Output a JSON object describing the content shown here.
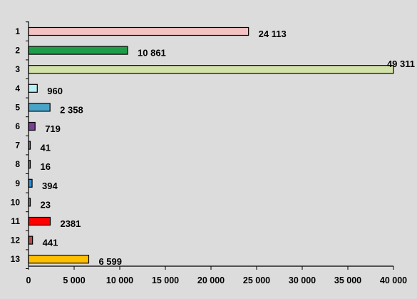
{
  "chart_data": {
    "type": "bar",
    "orientation": "horizontal",
    "categories": [
      "1",
      "2",
      "3",
      "4",
      "5",
      "6",
      "7",
      "8",
      "9",
      "10",
      "11",
      "12",
      "13"
    ],
    "values": [
      24113,
      10861,
      49311,
      960,
      2358,
      719,
      41,
      16,
      394,
      23,
      2381,
      441,
      6599
    ],
    "value_labels": [
      "24 113",
      "10 861",
      "49 311",
      "960",
      "2 358",
      "719",
      "41",
      "16",
      "394",
      "23",
      "2381",
      "441",
      "6 599"
    ],
    "colors": [
      "#f4c2c2",
      "#1f9e4a",
      "#d3e2a8",
      "#b8f0f4",
      "#4aa3c8",
      "#7a3f96",
      "#7a7a7a",
      "#7a7a7a",
      "#2f8fd8",
      "#7a7a7a",
      "#ff0000",
      "#b14c4c",
      "#ffc000"
    ],
    "xlim": [
      0,
      40000
    ],
    "x_ticks": [
      0,
      5000,
      10000,
      15000,
      20000,
      25000,
      30000,
      35000,
      40000
    ],
    "x_tick_labels": [
      "0",
      "5 000",
      "10 000",
      "15 000",
      "20 000",
      "25 000",
      "30 000",
      "35 000",
      "40 000"
    ],
    "grid": false,
    "legend": "none",
    "title": "",
    "xlabel": "",
    "ylabel": ""
  },
  "style": {
    "background": "#dcdcdc",
    "plot_background": "#ffffff",
    "bar_outline": "#000000"
  }
}
